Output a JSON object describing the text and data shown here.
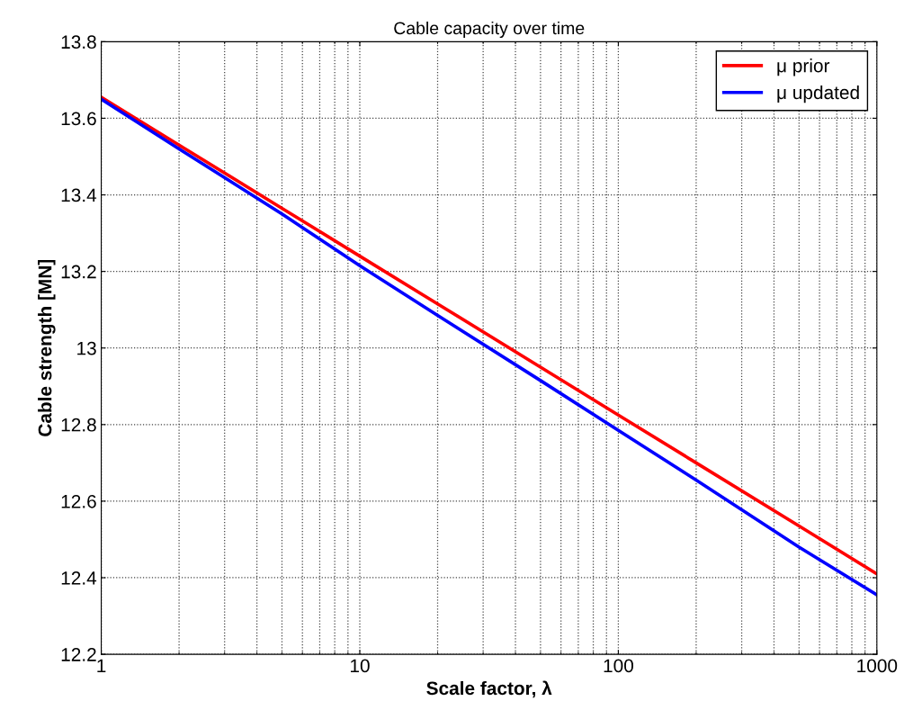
{
  "chart_data": {
    "type": "line",
    "title": "Cable capacity over time",
    "xlabel": "Scale factor, λ",
    "ylabel": "Cable strength [MN]",
    "x": [
      1,
      2,
      5,
      10,
      20,
      50,
      100,
      200,
      500,
      1000
    ],
    "series": [
      {
        "name": "μ prior",
        "color": "#ff0000",
        "values": [
          13.655,
          13.53,
          13.365,
          13.24,
          13.115,
          12.95,
          12.825,
          12.7,
          12.535,
          12.41
        ]
      },
      {
        "name": "μ updated",
        "color": "#0000ff",
        "values": [
          13.65,
          13.52,
          13.35,
          13.215,
          13.085,
          12.915,
          12.785,
          12.655,
          12.48,
          12.355
        ]
      }
    ],
    "log": "x",
    "xlim": [
      1,
      1000
    ],
    "xticks": [
      1,
      10,
      100,
      1000
    ],
    "ylim": [
      12.2,
      13.8
    ],
    "yticks": [
      12.2,
      12.4,
      12.6,
      12.8,
      13,
      13.2,
      13.4,
      13.6,
      13.8
    ],
    "grid": true,
    "legend": "top right",
    "marker": "none",
    "line_style": "solid"
  }
}
